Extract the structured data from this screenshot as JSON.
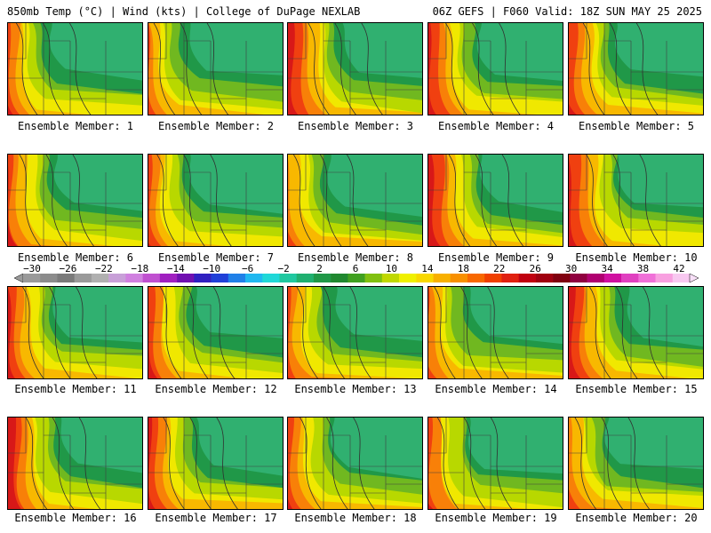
{
  "header": {
    "left": "850mb Temp (°C) | Wind (kts) | College of DuPage NEXLAB",
    "right": "06Z GEFS | F060 Valid: 18Z SUN MAY 25 2025"
  },
  "panels": [
    {
      "label": "Ensemble Member: 1"
    },
    {
      "label": "Ensemble Member: 2"
    },
    {
      "label": "Ensemble Member: 3"
    },
    {
      "label": "Ensemble Member: 4"
    },
    {
      "label": "Ensemble Member: 5"
    },
    {
      "label": "Ensemble Member: 6"
    },
    {
      "label": "Ensemble Member: 7"
    },
    {
      "label": "Ensemble Member: 8"
    },
    {
      "label": "Ensemble Member: 9"
    },
    {
      "label": "Ensemble Member: 10"
    },
    {
      "label": "Ensemble Member: 11"
    },
    {
      "label": "Ensemble Member: 12"
    },
    {
      "label": "Ensemble Member: 13"
    },
    {
      "label": "Ensemble Member: 14"
    },
    {
      "label": "Ensemble Member: 15"
    },
    {
      "label": "Ensemble Member: 16"
    },
    {
      "label": "Ensemble Member: 17"
    },
    {
      "label": "Ensemble Member: 18"
    },
    {
      "label": "Ensemble Member: 19"
    },
    {
      "label": "Ensemble Member: 20"
    }
  ],
  "colorbar": {
    "ticks": [
      "−30",
      "−26",
      "−22",
      "−18",
      "−14",
      "−10",
      "−6",
      "−2",
      "2",
      "6",
      "10",
      "14",
      "18",
      "22",
      "26",
      "30",
      "34",
      "38",
      "42"
    ],
    "colors": [
      "#9a9a9a",
      "#8c8c8c",
      "#7a7a7a",
      "#9a9a9a",
      "#b0b0b0",
      "#c8a0d8",
      "#d080e0",
      "#c050d0",
      "#a020c0",
      "#7010b0",
      "#3020c0",
      "#2040d8",
      "#2080e8",
      "#20b8f0",
      "#20d8d8",
      "#20c8a0",
      "#20b070",
      "#209848",
      "#208830",
      "#40a020",
      "#80c010",
      "#c0d800",
      "#f0f000",
      "#f8d800",
      "#f8b000",
      "#f89000",
      "#f86800",
      "#f04000",
      "#e02010",
      "#c00010",
      "#a00010",
      "#800010",
      "#900040",
      "#b00070",
      "#d010a0",
      "#e040c0",
      "#f070d8",
      "#f8a0e0",
      "#f8c8f0"
    ]
  }
}
